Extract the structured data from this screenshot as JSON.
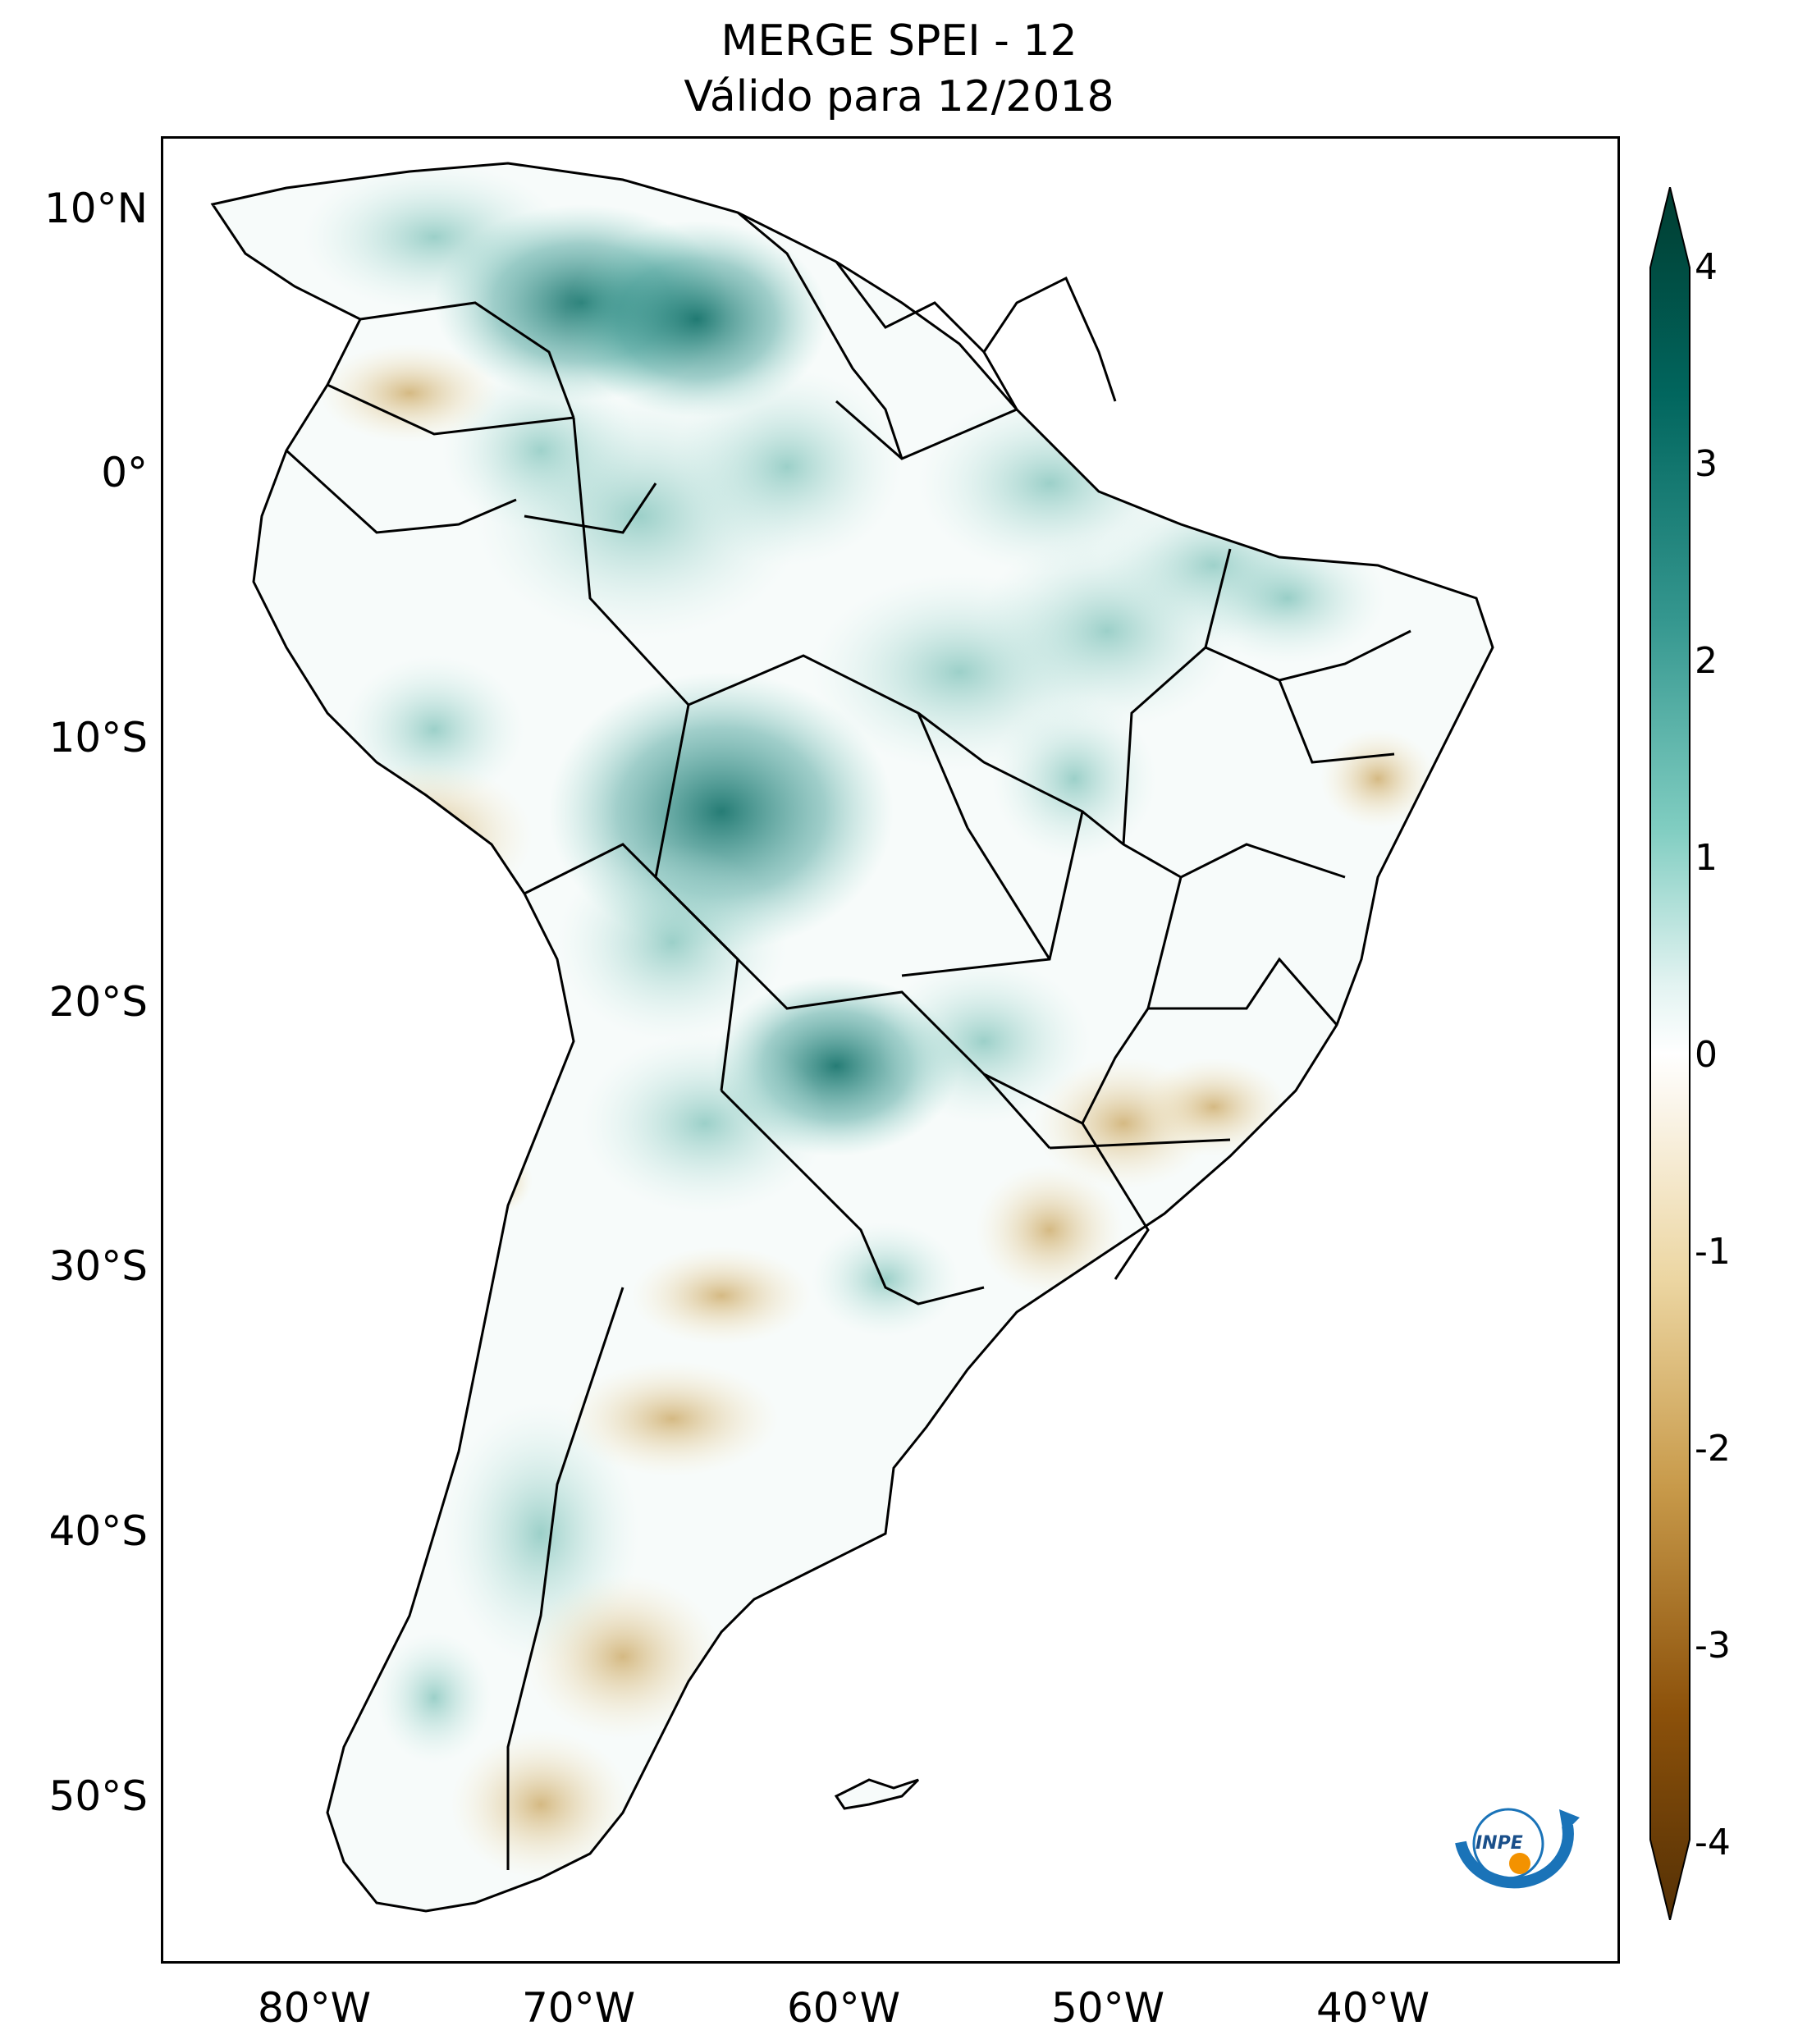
{
  "title": {
    "line1": "MERGE   SPEI - 12",
    "line2": "Válido para 12/2018"
  },
  "lat_ticks": [
    "10°N",
    "0°",
    "10°S",
    "20°S",
    "30°S",
    "40°S",
    "50°S"
  ],
  "lon_ticks": [
    "80°W",
    "70°W",
    "60°W",
    "50°W",
    "40°W"
  ],
  "colorbar": {
    "ticks": [
      "4",
      "3",
      "2",
      "1",
      "0",
      "-1",
      "-2",
      "-3",
      "-4"
    ],
    "colors": [
      "#003c30",
      "#01665e",
      "#35978f",
      "#80cdc1",
      "#c7eae5",
      "#f5f5f5",
      "#f6e8c3",
      "#dfc27d",
      "#bf812d",
      "#8c510a",
      "#543005"
    ]
  },
  "logo": {
    "text": "INPE"
  }
}
